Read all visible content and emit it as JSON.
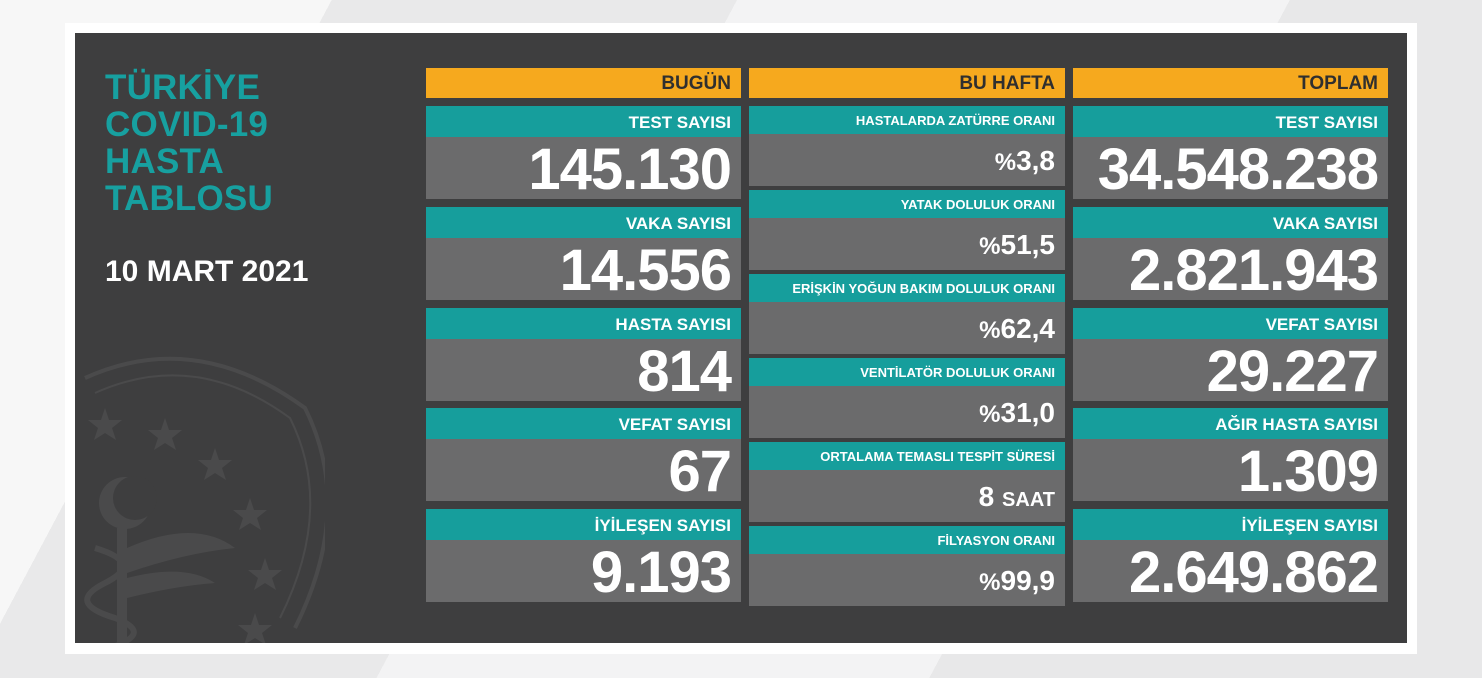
{
  "title_lines": [
    "TÜRKİYE",
    "COVID-19",
    "HASTA",
    "TABLOSU"
  ],
  "date": "10 MART 2021",
  "colors": {
    "accent_orange": "#f6a91e",
    "teal": "#169e9c",
    "panel": "#3e3e3f",
    "value_bg": "#6b6b6c"
  },
  "today": {
    "header": "BUGÜN",
    "items": [
      {
        "label": "TEST SAYISI",
        "value": "145.130"
      },
      {
        "label": "VAKA SAYISI",
        "value": "14.556"
      },
      {
        "label": "HASTA SAYISI",
        "value": "814"
      },
      {
        "label": "VEFAT SAYISI",
        "value": "67"
      },
      {
        "label": "İYİLEŞEN SAYISI",
        "value": "9.193"
      }
    ]
  },
  "this_week": {
    "header": "BU HAFTA",
    "items": [
      {
        "label": "HASTALARDA ZATÜRRE ORANI",
        "prefix": "%",
        "value": "3,8"
      },
      {
        "label": "YATAK DOLULUK ORANI",
        "prefix": "%",
        "value": "51,5"
      },
      {
        "label": "ERİŞKİN YOĞUN BAKIM DOLULUK ORANI",
        "prefix": "%",
        "value": "62,4"
      },
      {
        "label": "VENTİLATÖR DOLULUK ORANI",
        "prefix": "%",
        "value": "31,0"
      },
      {
        "label": "ORTALAMA TEMASLI TESPİT SÜRESİ",
        "value": "8",
        "suffix": "SAAT"
      },
      {
        "label": "FİLYASYON ORANI",
        "prefix": "%",
        "value": "99,9"
      }
    ]
  },
  "total": {
    "header": "TOPLAM",
    "items": [
      {
        "label": "TEST SAYISI",
        "value": "34.548.238"
      },
      {
        "label": "VAKA SAYISI",
        "value": "2.821.943"
      },
      {
        "label": "VEFAT SAYISI",
        "value": "29.227"
      },
      {
        "label": "AĞIR HASTA SAYISI",
        "value": "1.309"
      },
      {
        "label": "İYİLEŞEN SAYISI",
        "value": "2.649.862"
      }
    ]
  }
}
